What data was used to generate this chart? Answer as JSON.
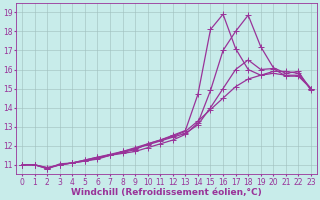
{
  "bg_color": "#c8ecea",
  "grid_color": "#9fbfbd",
  "line_color": "#993399",
  "xlim": [
    -0.5,
    23.5
  ],
  "ylim": [
    10.5,
    19.5
  ],
  "xticks": [
    0,
    1,
    2,
    3,
    4,
    5,
    6,
    7,
    8,
    9,
    10,
    11,
    12,
    13,
    14,
    15,
    16,
    17,
    18,
    19,
    20,
    21,
    22,
    23
  ],
  "yticks": [
    11,
    12,
    13,
    14,
    15,
    16,
    17,
    18,
    19
  ],
  "series": [
    {
      "x": [
        0,
        1,
        2,
        3,
        4,
        5,
        6,
        7,
        8,
        9,
        10,
        11,
        12,
        13,
        14,
        15,
        16,
        17,
        18,
        19,
        20,
        21,
        22,
        23
      ],
      "y": [
        11.0,
        11.0,
        10.8,
        11.0,
        11.1,
        11.2,
        11.3,
        11.5,
        11.6,
        11.7,
        11.9,
        12.1,
        12.3,
        12.6,
        13.2,
        14.9,
        17.0,
        18.0,
        18.85,
        17.2,
        16.1,
        15.8,
        15.9,
        14.9
      ]
    },
    {
      "x": [
        0,
        1,
        2,
        3,
        4,
        5,
        6,
        7,
        8,
        9,
        10,
        11,
        12,
        13,
        14,
        15,
        16,
        17,
        18,
        19,
        20,
        21,
        22,
        23
      ],
      "y": [
        11.0,
        11.0,
        10.8,
        11.05,
        11.1,
        11.2,
        11.35,
        11.5,
        11.65,
        11.8,
        12.1,
        12.3,
        12.55,
        12.8,
        14.7,
        18.1,
        18.9,
        17.1,
        16.0,
        15.7,
        15.9,
        15.9,
        15.8,
        15.0
      ]
    },
    {
      "x": [
        0,
        1,
        2,
        3,
        4,
        5,
        6,
        7,
        8,
        9,
        10,
        11,
        12,
        13,
        14,
        15,
        16,
        17,
        18,
        19,
        20,
        21,
        22,
        23
      ],
      "y": [
        11.0,
        11.0,
        10.85,
        11.0,
        11.1,
        11.25,
        11.4,
        11.55,
        11.7,
        11.85,
        12.05,
        12.25,
        12.45,
        12.65,
        13.1,
        14.0,
        15.0,
        16.0,
        16.5,
        16.0,
        16.05,
        15.65,
        15.65,
        15.0
      ]
    },
    {
      "x": [
        0,
        1,
        2,
        3,
        4,
        5,
        6,
        7,
        8,
        9,
        10,
        11,
        12,
        13,
        14,
        15,
        16,
        17,
        18,
        19,
        20,
        21,
        22,
        23
      ],
      "y": [
        11.0,
        11.0,
        10.85,
        11.0,
        11.1,
        11.25,
        11.4,
        11.5,
        11.7,
        11.9,
        12.1,
        12.3,
        12.5,
        12.75,
        13.3,
        13.9,
        14.5,
        15.1,
        15.5,
        15.7,
        15.8,
        15.7,
        15.7,
        15.0
      ]
    }
  ],
  "xlabel": "Windchill (Refroidissement éolien,°C)",
  "xlabel_fontsize": 6.5,
  "tick_fontsize": 5.5,
  "marker": "+",
  "markersize": 4,
  "linewidth": 0.9
}
